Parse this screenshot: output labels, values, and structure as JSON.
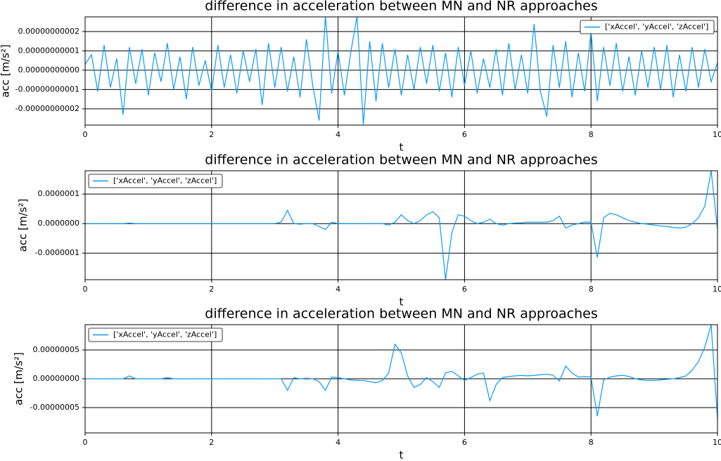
{
  "chart_data": [
    {
      "type": "line",
      "title": "difference in acceleration between MN and NR approaches",
      "xlabel": "t",
      "ylabel": "acc [m/s²]",
      "grid": true,
      "legend": "upper right",
      "x": [
        0,
        0.1,
        0.2,
        0.3,
        0.4,
        0.5,
        0.6,
        0.7,
        0.8,
        0.9,
        1,
        1.1,
        1.2,
        1.3,
        1.4,
        1.5,
        1.6,
        1.7,
        1.8,
        1.9,
        2,
        2.1,
        2.2,
        2.3,
        2.4,
        2.5,
        2.6,
        2.7,
        2.8,
        2.9,
        3,
        3.1,
        3.2,
        3.3,
        3.4,
        3.5,
        3.6,
        3.7,
        3.8,
        3.9,
        4,
        4.1,
        4.2,
        4.3,
        4.4,
        4.5,
        4.6,
        4.7,
        4.8,
        4.9,
        5,
        5.1,
        5.2,
        5.3,
        5.4,
        5.5,
        5.6,
        5.7,
        5.8,
        5.9,
        6,
        6.1,
        6.2,
        6.3,
        6.4,
        6.5,
        6.6,
        6.7,
        6.8,
        6.9,
        7,
        7.1,
        7.2,
        7.3,
        7.4,
        7.5,
        7.6,
        7.7,
        7.8,
        7.9,
        8,
        8.1,
        8.2,
        8.3,
        8.4,
        8.5,
        8.6,
        8.7,
        8.8,
        8.9,
        9,
        9.1,
        9.2,
        9.3,
        9.4,
        9.5,
        9.6,
        9.7,
        9.8,
        9.9,
        10
      ],
      "series": [
        {
          "name": "['xAccel', 'yAccel', 'zAccel']",
          "color": "#0a9bf5",
          "values": [
            3e-12,
            8e-12,
            -1.1e-11,
            1.3e-11,
            -9e-12,
            6e-12,
            -2.3e-11,
            1.2e-11,
            -7e-12,
            1.1e-11,
            -1.3e-11,
            9e-12,
            -6e-12,
            1.4e-11,
            -1e-11,
            7e-12,
            -1.5e-11,
            1.2e-11,
            -8e-12,
            5e-12,
            -1.1e-11,
            1.3e-11,
            -9e-12,
            8e-12,
            -1.2e-11,
            1e-11,
            -6e-12,
            1.1e-11,
            -1.8e-11,
            1.4e-11,
            -9e-12,
            1.2e-11,
            -1.1e-11,
            7e-12,
            -1.4e-11,
            1.6e-11,
            -8e-12,
            -2.6e-11,
            2.8e-11,
            -1.2e-11,
            1e-11,
            -1.3e-11,
            9e-12,
            2.8e-11,
            -2.8e-11,
            1.5e-11,
            -1.6e-11,
            1.4e-11,
            -9e-12,
            1.1e-11,
            -1.3e-11,
            8e-12,
            -1e-11,
            1.2e-11,
            -7e-12,
            1.3e-11,
            -1.1e-11,
            9e-12,
            -1.4e-11,
            1.2e-11,
            -8e-12,
            1e-11,
            -1.2e-11,
            6e-12,
            -9e-12,
            1.1e-11,
            -1.3e-11,
            1.4e-11,
            -1e-11,
            8e-12,
            -1.2e-11,
            2.4e-11,
            -1.1e-11,
            -2.4e-11,
            1.3e-11,
            -9e-12,
            1.5e-11,
            -1.4e-11,
            9e-12,
            -1.1e-11,
            2e-11,
            -1.6e-11,
            1.2e-11,
            -8e-12,
            1.4e-11,
            -1.1e-11,
            7e-12,
            -1.3e-11,
            1e-11,
            -9e-12,
            1.2e-11,
            -1e-11,
            1.3e-11,
            -1.4e-11,
            8e-12,
            -1.1e-11,
            1.2e-11,
            -9e-12,
            1.1e-11,
            -6e-12,
            4e-12
          ]
        }
      ],
      "xlim": [
        0,
        10
      ],
      "xticks": [
        0,
        2,
        4,
        6,
        8,
        10
      ],
      "ylim": [
        -2.84e-11,
        2.76e-11
      ],
      "yticks": [
        {
          "value": -2e-11,
          "label": "-0.00000000002"
        },
        {
          "value": -1e-11,
          "label": "-0.00000000001"
        },
        {
          "value": 0,
          "label": "0.00000000000"
        },
        {
          "value": 1e-11,
          "label": "0.00000000001"
        },
        {
          "value": 2e-11,
          "label": "0.00000000002"
        }
      ]
    },
    {
      "type": "line",
      "title": "difference in acceleration between MN and NR approaches",
      "xlabel": "t",
      "ylabel": "acc [m/s²]",
      "grid": true,
      "legend": "upper left",
      "x": [
        0,
        0.1,
        0.2,
        0.3,
        0.4,
        0.5,
        0.6,
        0.7,
        0.8,
        0.9,
        1,
        1.1,
        1.2,
        1.3,
        1.4,
        1.5,
        1.6,
        1.7,
        1.8,
        1.9,
        2,
        2.1,
        2.2,
        2.3,
        2.4,
        2.5,
        2.6,
        2.7,
        2.8,
        2.9,
        3,
        3.1,
        3.2,
        3.3,
        3.4,
        3.5,
        3.6,
        3.7,
        3.8,
        3.9,
        4,
        4.1,
        4.2,
        4.3,
        4.4,
        4.5,
        4.6,
        4.7,
        4.8,
        4.9,
        5,
        5.1,
        5.2,
        5.3,
        5.4,
        5.5,
        5.6,
        5.7,
        5.8,
        5.9,
        6,
        6.1,
        6.2,
        6.3,
        6.4,
        6.5,
        6.6,
        6.7,
        6.8,
        6.9,
        7,
        7.1,
        7.2,
        7.3,
        7.4,
        7.5,
        7.6,
        7.7,
        7.8,
        7.9,
        8,
        8.1,
        8.2,
        8.3,
        8.4,
        8.5,
        8.6,
        8.7,
        8.8,
        8.9,
        9,
        9.1,
        9.2,
        9.3,
        9.4,
        9.5,
        9.6,
        9.7,
        9.8,
        9.9,
        10
      ],
      "series": [
        {
          "name": "['xAccel', 'yAccel', 'zAccel']",
          "color": "#0a9bf5",
          "values": [
            0,
            0,
            0,
            0,
            0,
            0,
            0,
            2e-09,
            0,
            0,
            0,
            0,
            0,
            0,
            0,
            0,
            0,
            0,
            0,
            0,
            0,
            0,
            0,
            0,
            0,
            0,
            0,
            0,
            0,
            0,
            0,
            5e-09,
            4.5e-08,
            0,
            -2e-09,
            0,
            0,
            -1e-08,
            -2e-08,
            5e-09,
            0,
            0,
            0,
            0,
            0,
            0,
            0,
            0,
            -5e-09,
            5e-09,
            3e-08,
            1e-08,
            0,
            1e-08,
            3e-08,
            4e-08,
            2e-08,
            -1.9e-07,
            -3e-08,
            3e-08,
            2.5e-08,
            1e-08,
            0,
            5e-09,
            1.5e-08,
            0,
            -5e-09,
            0,
            2e-09,
            3e-09,
            5e-09,
            5e-09,
            5e-09,
            5e-09,
            1e-08,
            2.5e-08,
            -1.5e-08,
            -5e-09,
            0,
            5e-09,
            5e-09,
            -1.15e-07,
            2e-08,
            3.5e-08,
            3e-08,
            2e-08,
            1e-08,
            5e-09,
            0,
            -2e-09,
            -5e-09,
            -8e-09,
            -1e-08,
            -1.3e-08,
            -1.5e-08,
            -1.2e-08,
            0,
            2e-08,
            6e-08,
            1.79e-07,
            -2e-08
          ]
        }
      ],
      "xlim": [
        0,
        10
      ],
      "xticks": [
        0,
        2,
        4,
        6,
        8,
        10
      ],
      "ylim": [
        -1.9e-07,
        1.79e-07
      ],
      "yticks": [
        {
          "value": -1e-07,
          "label": "-0.0000001"
        },
        {
          "value": 0,
          "label": "0.0000000"
        },
        {
          "value": 1e-07,
          "label": "0.0000001"
        }
      ]
    },
    {
      "type": "line",
      "title": "difference in acceleration between MN and NR approaches",
      "xlabel": "t",
      "ylabel": "acc [m/s²]",
      "grid": true,
      "legend": "upper left",
      "x": [
        0,
        0.1,
        0.2,
        0.3,
        0.4,
        0.5,
        0.6,
        0.7,
        0.8,
        0.9,
        1,
        1.1,
        1.2,
        1.3,
        1.4,
        1.5,
        1.6,
        1.7,
        1.8,
        1.9,
        2,
        2.1,
        2.2,
        2.3,
        2.4,
        2.5,
        2.6,
        2.7,
        2.8,
        2.9,
        3,
        3.1,
        3.2,
        3.3,
        3.4,
        3.5,
        3.6,
        3.7,
        3.8,
        3.9,
        4,
        4.1,
        4.2,
        4.3,
        4.4,
        4.5,
        4.6,
        4.7,
        4.8,
        4.9,
        5,
        5.1,
        5.2,
        5.3,
        5.4,
        5.5,
        5.6,
        5.7,
        5.8,
        5.9,
        6,
        6.1,
        6.2,
        6.3,
        6.4,
        6.5,
        6.6,
        6.7,
        6.8,
        6.9,
        7,
        7.1,
        7.2,
        7.3,
        7.4,
        7.5,
        7.6,
        7.7,
        7.8,
        7.9,
        8,
        8.1,
        8.2,
        8.3,
        8.4,
        8.5,
        8.6,
        8.7,
        8.8,
        8.9,
        9,
        9.1,
        9.2,
        9.3,
        9.4,
        9.5,
        9.6,
        9.7,
        9.8,
        9.9,
        10
      ],
      "series": [
        {
          "name": "['xAccel', 'yAccel', 'zAccel']",
          "color": "#0a9bf5",
          "values": [
            0,
            0,
            0,
            0,
            0,
            0,
            0,
            5e-09,
            0,
            0,
            0,
            0,
            0,
            2e-09,
            0,
            0,
            0,
            0,
            0,
            0,
            0,
            0,
            0,
            0,
            0,
            0,
            0,
            0,
            0,
            0,
            0,
            0,
            -2e-08,
            2e-09,
            0,
            1e-09,
            0,
            -5e-09,
            -2e-08,
            3e-09,
            2e-09,
            0,
            -2e-09,
            -3e-09,
            -3e-09,
            -5e-09,
            -7e-09,
            -3e-09,
            1e-08,
            6e-08,
            4.5e-08,
            5e-09,
            -1.5e-08,
            -1e-08,
            2e-09,
            -5e-09,
            -1.5e-08,
            1e-08,
            1.3e-08,
            5e-09,
            -3e-09,
            2e-09,
            8e-09,
            1e-08,
            -3.8e-08,
            -1e-08,
            2e-09,
            4e-09,
            5e-09,
            6e-09,
            5e-09,
            6e-09,
            7e-09,
            8e-09,
            6e-09,
            -4e-09,
            2.2e-08,
            1e-08,
            3e-09,
            4e-09,
            3e-09,
            -6.5e-08,
            -2e-09,
            3e-09,
            5e-09,
            6e-09,
            4e-09,
            0,
            -2e-09,
            -3e-09,
            -3e-09,
            -2e-09,
            -1e-09,
            0,
            2e-09,
            5e-09,
            1.5e-08,
            3e-08,
            5.5e-08,
            9.4e-08,
            -7e-08
          ]
        }
      ],
      "xlim": [
        0,
        10
      ],
      "xticks": [
        0,
        2,
        4,
        6,
        8,
        10
      ],
      "ylim": [
        -9.4e-08,
        9.4e-08
      ],
      "yticks": [
        {
          "value": -5e-08,
          "label": "-0.00000005"
        },
        {
          "value": 0,
          "label": "0.00000000"
        },
        {
          "value": 5e-08,
          "label": "0.00000005"
        }
      ]
    }
  ]
}
